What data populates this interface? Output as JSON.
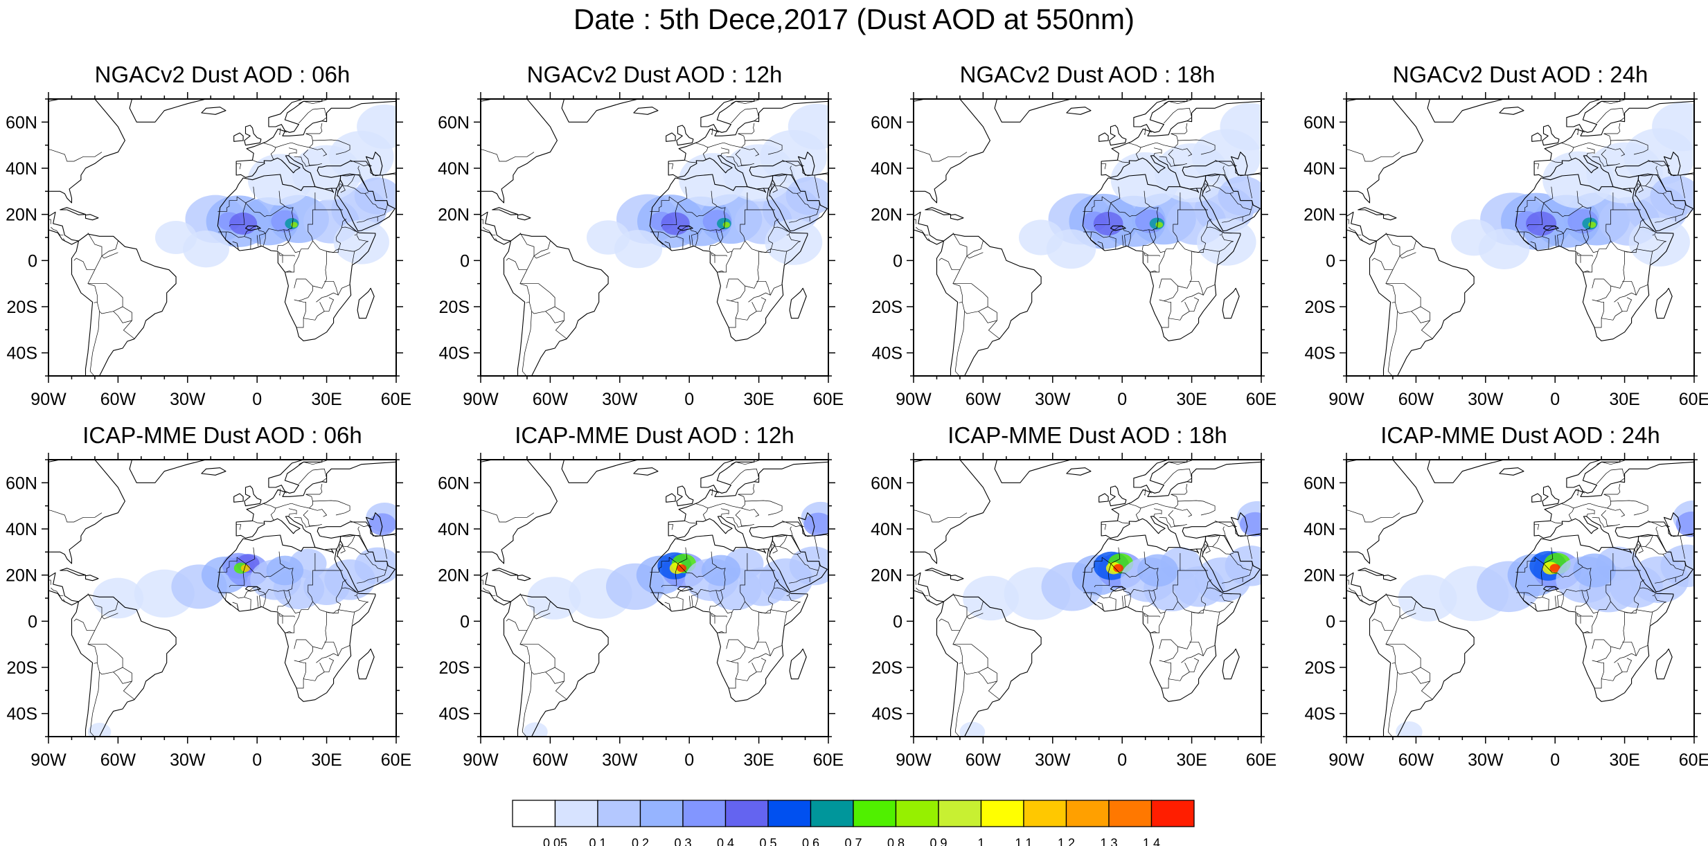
{
  "title": "Date : 5th Dece,2017 (Dust AOD at 550nm)",
  "lat_labels": [
    "60N",
    "40N",
    "20N",
    "0",
    "20S",
    "40S"
  ],
  "lon_labels": [
    "90W",
    "60W",
    "30W",
    "0",
    "30E",
    "60E"
  ],
  "lat_values": [
    60,
    40,
    20,
    0,
    -20,
    -40
  ],
  "lon_values": [
    -90,
    -60,
    -30,
    0,
    30,
    60
  ],
  "extent": {
    "lon": [
      -90,
      60
    ],
    "lat": [
      -50,
      70
    ]
  },
  "panels": [
    {
      "title": "NGACv2 Dust AOD : 06h",
      "model": "NGACv2",
      "hour": "06h"
    },
    {
      "title": "NGACv2 Dust AOD : 12h",
      "model": "NGACv2",
      "hour": "12h"
    },
    {
      "title": "NGACv2 Dust AOD : 18h",
      "model": "NGACv2",
      "hour": "18h"
    },
    {
      "title": "NGACv2 Dust AOD : 24h",
      "model": "NGACv2",
      "hour": "24h"
    },
    {
      "title": "ICAP-MME Dust AOD : 06h",
      "model": "ICAP-MME",
      "hour": "06h"
    },
    {
      "title": "ICAP-MME Dust AOD : 12h",
      "model": "ICAP-MME",
      "hour": "12h"
    },
    {
      "title": "ICAP-MME Dust AOD : 18h",
      "model": "ICAP-MME",
      "hour": "18h"
    },
    {
      "title": "ICAP-MME Dust AOD : 24h",
      "model": "ICAP-MME",
      "hour": "24h"
    }
  ],
  "colorbar": {
    "labels": [
      "0.05",
      "0.1",
      "0.2",
      "0.3",
      "0.4",
      "0.5",
      "0.6",
      "0.7",
      "0.8",
      "0.9",
      "1",
      "1.1",
      "1.2",
      "1.3",
      "1.4"
    ],
    "colors": [
      "#ffffff",
      "#d7e3ff",
      "#b4c8ff",
      "#96b4ff",
      "#8296ff",
      "#6464f0",
      "#0050f0",
      "#00969b",
      "#50f000",
      "#96f000",
      "#c8f032",
      "#ffff00",
      "#ffc800",
      "#ffa000",
      "#ff7800",
      "#ff1e00"
    ]
  }
}
